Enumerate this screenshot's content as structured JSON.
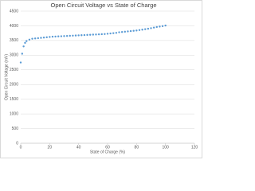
{
  "chart_data": {
    "type": "scatter",
    "title": "Open Circuit Voltage vs State of Charge",
    "x_label": "State of Charge (%)",
    "y_label": "Open Circuit Voltage (mV)",
    "x": [
      0,
      1,
      2,
      3,
      4,
      6,
      8,
      10,
      12,
      14,
      16,
      18,
      20,
      22,
      24,
      26,
      28,
      30,
      32,
      34,
      36,
      38,
      40,
      42,
      44,
      46,
      48,
      50,
      52,
      54,
      56,
      58,
      60,
      62,
      64,
      66,
      68,
      70,
      72,
      74,
      76,
      78,
      80,
      82,
      84,
      86,
      88,
      90,
      92,
      94,
      96,
      98,
      100
    ],
    "values": [
      2750,
      3050,
      3300,
      3420,
      3480,
      3530,
      3560,
      3570,
      3580,
      3590,
      3600,
      3610,
      3620,
      3630,
      3635,
      3640,
      3645,
      3650,
      3655,
      3660,
      3665,
      3670,
      3675,
      3680,
      3685,
      3690,
      3695,
      3700,
      3705,
      3710,
      3715,
      3720,
      3730,
      3740,
      3750,
      3760,
      3780,
      3790,
      3800,
      3810,
      3820,
      3830,
      3840,
      3855,
      3870,
      3885,
      3900,
      3920,
      3940,
      3960,
      3975,
      3990,
      4010
    ],
    "color": "#5b9bd5",
    "xlim": [
      0,
      120
    ],
    "xticks": [
      0,
      20,
      40,
      60,
      80,
      100,
      120
    ],
    "ylim": [
      0,
      4500
    ],
    "yticks": [
      0,
      500,
      1000,
      1500,
      2000,
      2500,
      3000,
      3500,
      4000,
      4500
    ],
    "grid": true
  }
}
